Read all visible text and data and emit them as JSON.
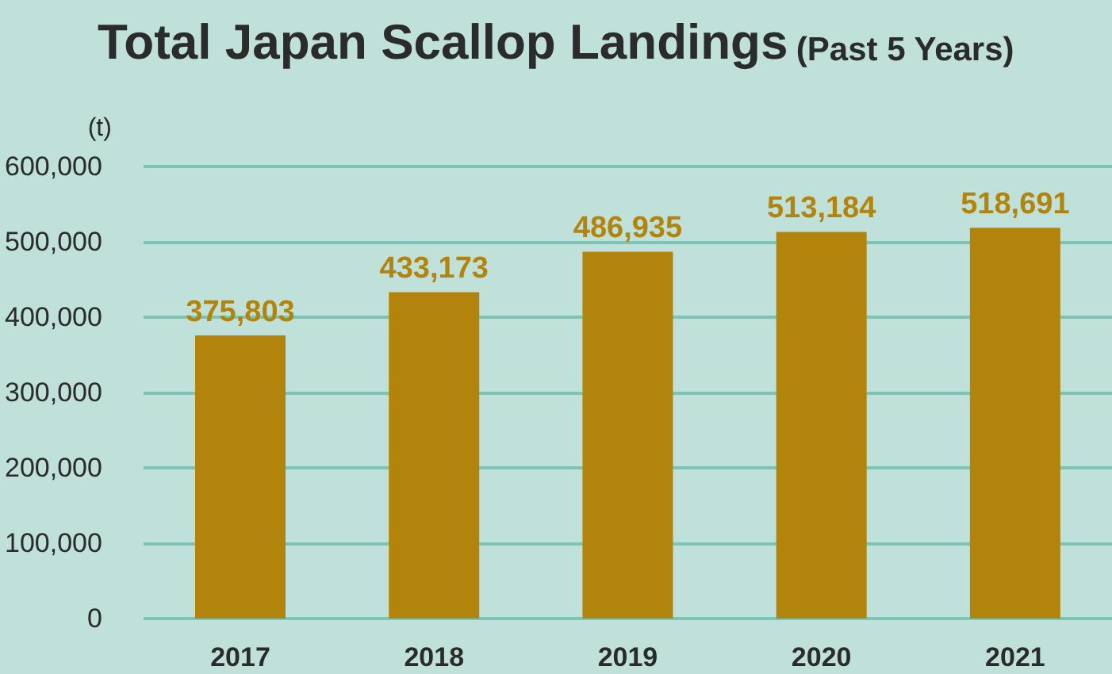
{
  "chart_data": {
    "type": "bar",
    "title": "Total Japan Scallop Landings",
    "subtitle": "(Past 5 Years)",
    "ylabel": "(t)",
    "categories": [
      "2017",
      "2018",
      "2019",
      "2020",
      "2021"
    ],
    "values": [
      375803,
      433173,
      486935,
      513184,
      518691
    ],
    "color": "#b3840c",
    "value_labels": [
      "375,803",
      "433,173",
      "486,935",
      "513,184",
      "518,691"
    ],
    "ylim": [
      0,
      600000
    ],
    "yticks": [
      0,
      {
        "value": 100000,
        "label": "100,000"
      },
      {
        "value": 200000,
        "label": "200,000"
      },
      {
        "value": 300000,
        "label": "300,000"
      },
      {
        "value": 400000,
        "label": "400,000"
      },
      {
        "value": 500000,
        "label": "500,000"
      },
      {
        "value": 600000,
        "label": "600,000"
      }
    ],
    "grid": "y"
  }
}
